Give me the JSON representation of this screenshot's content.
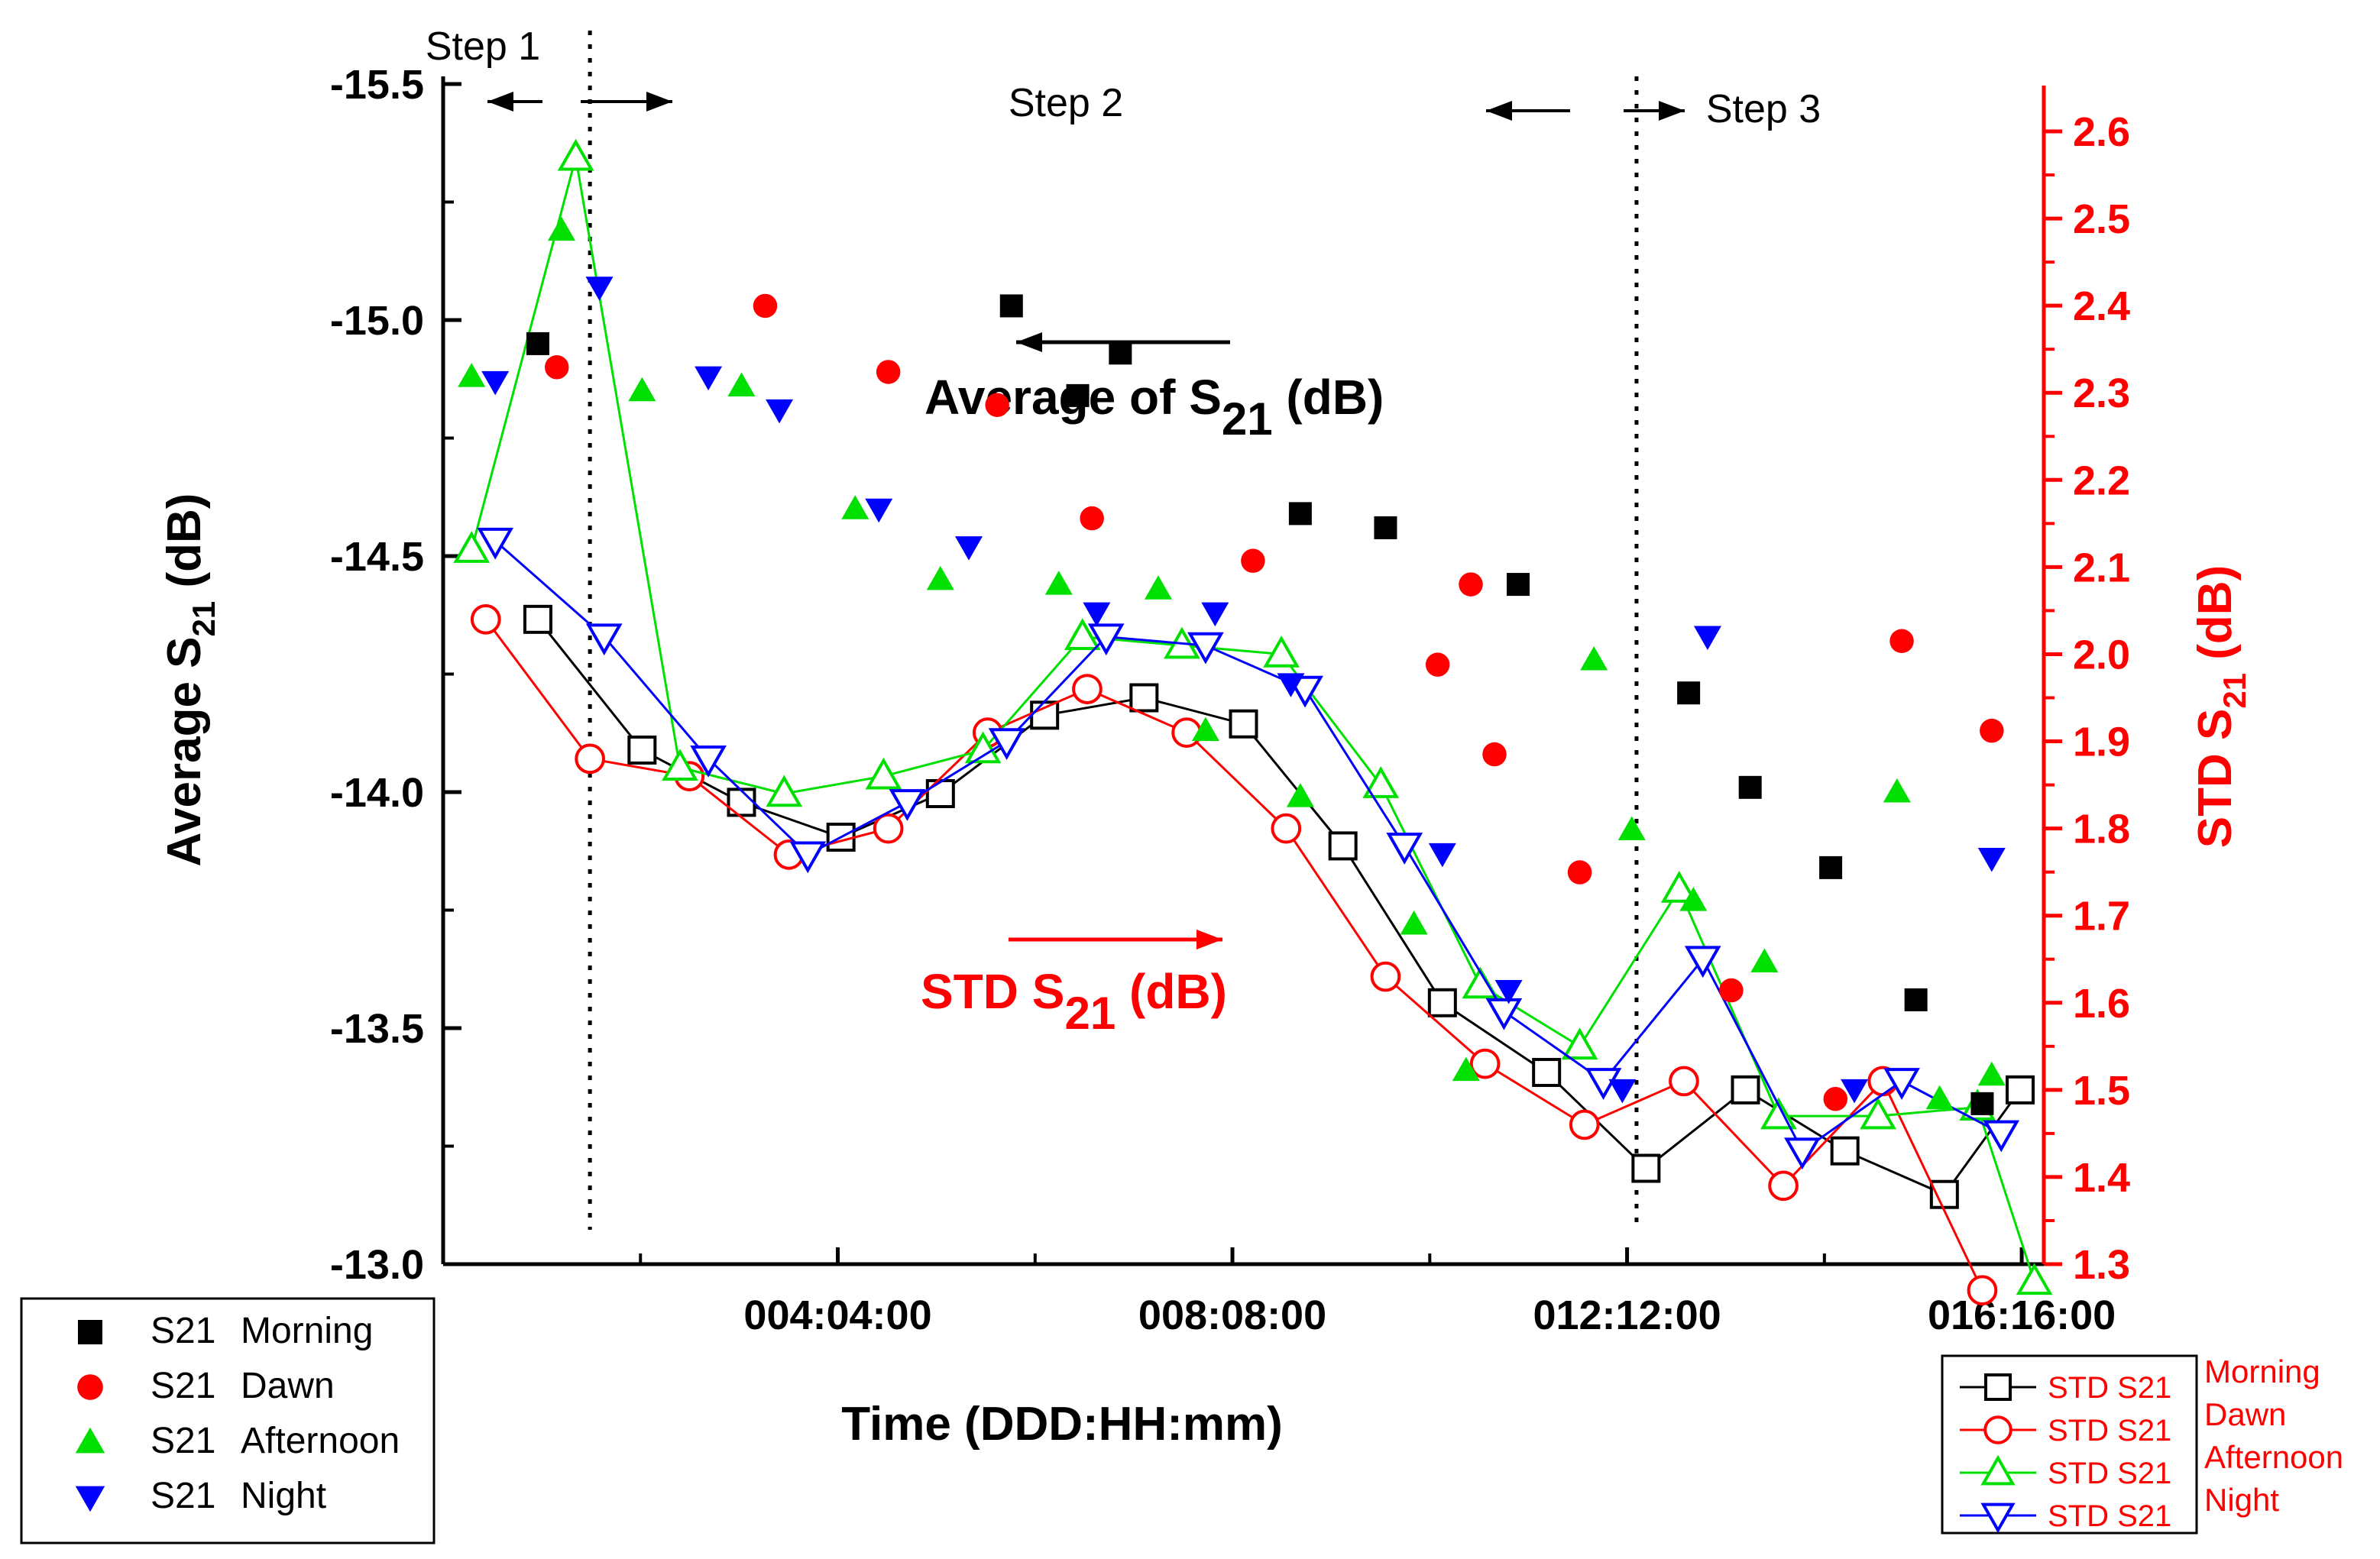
{
  "chart_data": {
    "type": "scatter",
    "title": "",
    "xlabel": "Time (DDD:HH:mm)",
    "ylabel_left": "Average S21 (dB)",
    "ylabel_right": "STD S21 (dB)",
    "x_units": "days",
    "xlim": [
      0,
      16.9
    ],
    "x_tick_values": [
      4.1667,
      8.3333,
      12.5,
      16.6667
    ],
    "x_tick_labels": [
      "004:04:00",
      "008:08:00",
      "012:12:00",
      "016:16:00"
    ],
    "ylim_left": [
      -13.0,
      -15.5
    ],
    "y_left_ticks": [
      "-13.0",
      "-13.5",
      "-14.0",
      "-14.5",
      "-15.0",
      "-15.5"
    ],
    "y_left_tick_values": [
      -13.0,
      -13.5,
      -14.0,
      -14.5,
      -15.0,
      -15.5
    ],
    "ylim_right": [
      1.3,
      2.65
    ],
    "y_right_ticks": [
      "1.3",
      "1.4",
      "1.5",
      "1.6",
      "1.7",
      "1.8",
      "1.9",
      "2.0",
      "2.1",
      "2.2",
      "2.3",
      "2.4",
      "2.5",
      "2.6"
    ],
    "y_right_tick_values": [
      1.3,
      1.4,
      1.5,
      1.6,
      1.7,
      1.8,
      1.9,
      2.0,
      2.1,
      2.2,
      2.3,
      2.4,
      2.5,
      2.6
    ],
    "average_series": [
      {
        "name": "Morning",
        "legend_prefix": "S21",
        "marker": "square",
        "color": "#000000",
        "x": [
          1.0,
          6.0,
          7.15,
          6.7,
          9.05,
          9.95,
          11.35,
          13.15,
          13.8,
          14.65,
          15.55,
          16.25
        ],
        "y": [
          -14.95,
          -15.03,
          -14.93,
          -14.84,
          -14.59,
          -14.56,
          -14.44,
          -14.21,
          -14.01,
          -13.84,
          -13.56,
          -13.34
        ]
      },
      {
        "name": "Dawn",
        "legend_prefix": "S21",
        "marker": "circle",
        "color": "#ff0000",
        "x": [
          1.2,
          3.4,
          4.7,
          5.85,
          6.85,
          8.55,
          10.85,
          10.5,
          11.1,
          12.0,
          13.6,
          14.7,
          15.4,
          16.35
        ],
        "y": [
          -14.9,
          -15.03,
          -14.89,
          -14.82,
          -14.58,
          -14.49,
          -14.44,
          -14.27,
          -14.08,
          -13.83,
          -13.58,
          -13.35,
          -14.32,
          -14.13
        ]
      },
      {
        "name": "Afternoon",
        "legend_prefix": "S21",
        "marker": "triangle-up",
        "color": "#00e000",
        "x": [
          0.3,
          1.25,
          2.1,
          3.15,
          4.35,
          5.25,
          6.5,
          7.55,
          8.05,
          9.05,
          10.25,
          10.8,
          12.15,
          12.55,
          13.2,
          13.95,
          15.35,
          15.8,
          16.35
        ],
        "y": [
          -14.88,
          -15.19,
          -14.85,
          -14.86,
          -14.6,
          -14.45,
          -14.44,
          -14.43,
          -14.13,
          -13.99,
          -13.72,
          -13.41,
          -14.28,
          -13.92,
          -13.77,
          -13.64,
          -14.0,
          -13.35,
          -13.4
        ],
        "x_sorted_note": "values read in plotted order"
      },
      {
        "name": "Night",
        "legend_prefix": "S21",
        "marker": "triangle-down",
        "color": "#0000ff",
        "x": [
          0.55,
          1.65,
          2.8,
          3.55,
          4.6,
          5.55,
          6.9,
          8.15,
          8.95,
          10.55,
          11.25,
          12.45,
          13.35,
          14.9,
          16.35
        ],
        "y": [
          -14.87,
          -15.07,
          -14.88,
          -14.81,
          -14.6,
          -14.52,
          -14.38,
          -14.38,
          -14.23,
          -13.87,
          -13.58,
          -13.37,
          -14.33,
          -13.37,
          -13.86
        ]
      }
    ],
    "std_series": [
      {
        "name": "Morning",
        "legend_prefix": "STD S21",
        "marker": "open-square",
        "color": "#000000",
        "x": [
          1.0,
          2.1,
          3.15,
          4.2,
          5.25,
          6.35,
          7.4,
          8.45,
          9.5,
          10.55,
          11.65,
          12.7,
          13.75,
          14.8,
          15.85,
          16.65
        ],
        "y": [
          2.04,
          1.89,
          1.83,
          1.79,
          1.84,
          1.93,
          1.95,
          1.92,
          1.78,
          1.6,
          1.52,
          1.41,
          1.5,
          1.43,
          1.38,
          1.5
        ]
      },
      {
        "name": "Dawn",
        "legend_prefix": "STD S21",
        "marker": "open-circle",
        "color": "#ff0000",
        "x": [
          0.45,
          1.55,
          2.6,
          3.65,
          4.7,
          5.75,
          6.8,
          7.85,
          8.9,
          9.95,
          11.0,
          12.05,
          13.1,
          14.15,
          15.2,
          16.25
        ],
        "y": [
          2.04,
          1.88,
          1.86,
          1.77,
          1.8,
          1.91,
          1.96,
          1.91,
          1.8,
          1.63,
          1.53,
          1.46,
          1.51,
          1.39,
          1.51,
          1.27
        ]
      },
      {
        "name": "Afternoon",
        "legend_prefix": "STD S21",
        "marker": "open-triangle-up",
        "color": "#00e000",
        "x": [
          0.3,
          1.4,
          2.5,
          3.6,
          4.65,
          5.7,
          6.75,
          7.8,
          8.85,
          9.9,
          10.95,
          12.0,
          13.05,
          14.1,
          15.15,
          16.2,
          16.8
        ],
        "y": [
          2.12,
          2.57,
          1.87,
          1.84,
          1.86,
          1.89,
          2.02,
          2.01,
          2.0,
          1.85,
          1.62,
          1.55,
          1.73,
          1.47,
          1.47,
          1.48,
          1.28
        ]
      },
      {
        "name": "Night",
        "legend_prefix": "STD S21",
        "marker": "open-triangle-down",
        "color": "#0000ff",
        "x": [
          0.55,
          1.7,
          2.8,
          3.85,
          4.9,
          5.95,
          7.0,
          8.05,
          9.1,
          10.15,
          11.2,
          12.25,
          13.3,
          14.35,
          15.4,
          16.45
        ],
        "y": [
          2.13,
          2.02,
          1.88,
          1.77,
          1.83,
          1.9,
          2.02,
          2.01,
          1.96,
          1.78,
          1.59,
          1.51,
          1.65,
          1.43,
          1.51,
          1.45
        ]
      }
    ],
    "annotations": {
      "step1": "Step 1",
      "step2": "Step 2",
      "step3": "Step 3",
      "step1_x": 1.55,
      "step3_x": 12.6,
      "avg_label_main": "Average of S",
      "avg_label_sub": "21",
      "avg_label_tail": " (dB)",
      "std_label_main": "STD S",
      "std_label_sub": "21",
      "std_label_tail": " (dB)"
    },
    "axis_title_parts": {
      "left_main": "Average S",
      "left_sub": "21",
      "left_tail": " (dB)",
      "right_main": "STD S",
      "right_sub": "21",
      "right_tail": " (dB)"
    },
    "colors": {
      "axis_right": "#ff0000",
      "axis_left": "#000000"
    }
  }
}
